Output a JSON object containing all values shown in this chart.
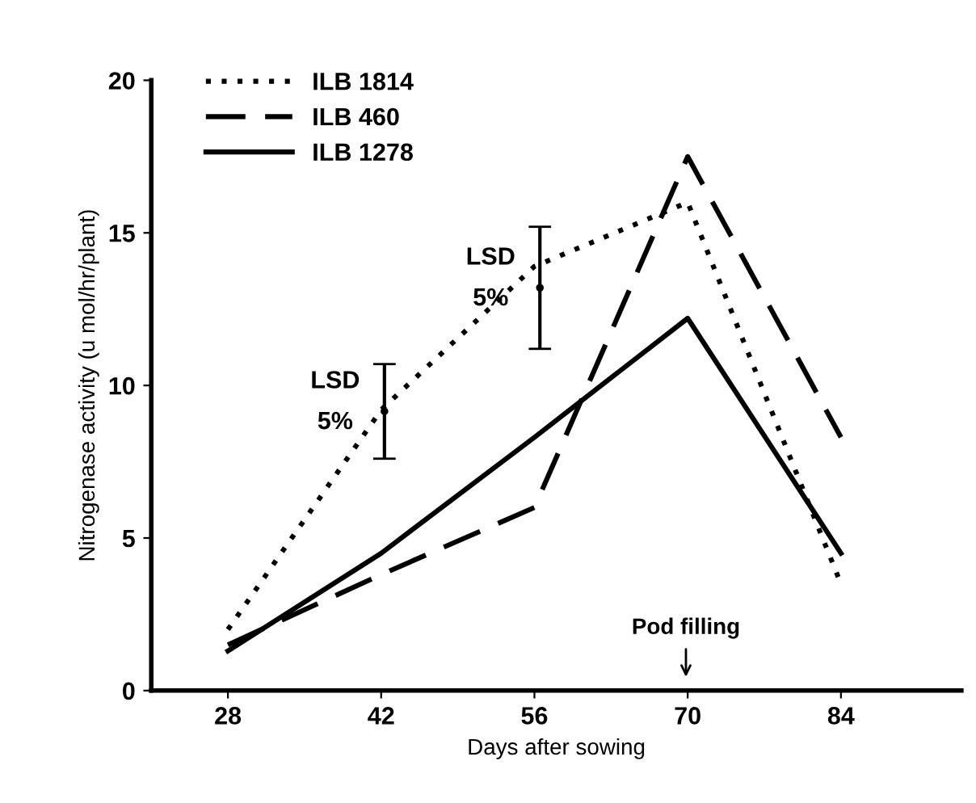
{
  "chart_data": {
    "type": "line",
    "xlabel": "Days after sowing",
    "ylabel": "Nitrogenase activity (u mol/hr/plant)",
    "x": [
      28,
      42,
      56,
      70,
      84
    ],
    "xlim": [
      21,
      95
    ],
    "xticks": [
      28,
      42,
      56,
      70,
      84
    ],
    "ylim": [
      0,
      20
    ],
    "yticks": [
      0,
      5,
      10,
      15,
      20
    ],
    "series": [
      {
        "name": "ILB 1814",
        "color": "#000000",
        "line_style": "dotted",
        "values": [
          2.0,
          9.2,
          13.9,
          16.0,
          3.5
        ]
      },
      {
        "name": "ILB 460",
        "color": "#000000",
        "line_style": "dashed",
        "values": [
          1.5,
          3.8,
          6.0,
          17.5,
          8.3
        ]
      },
      {
        "name": "ILB 1278",
        "color": "#000000",
        "line_style": "solid",
        "values": [
          1.3,
          4.5,
          8.3,
          12.2,
          4.5
        ]
      },
      {
        "type": "scatter",
        "marker": "none",
        "color": "#000000",
        "x": [
          42.3,
          56.5
        ],
        "values": [
          9.15,
          13.2
        ],
        "errors": [
          [
            7.6,
            10.7
          ],
          [
            11.2,
            15.2
          ]
        ]
      }
    ],
    "annotations": [
      {
        "text": "LSD\n5%",
        "x": 42.3,
        "y": 9.15
      },
      {
        "text": "LSD\n5%",
        "x": 56.5,
        "y": 13.2
      },
      "Pod filling"
    ],
    "legend": "top left",
    "grid": false
  }
}
